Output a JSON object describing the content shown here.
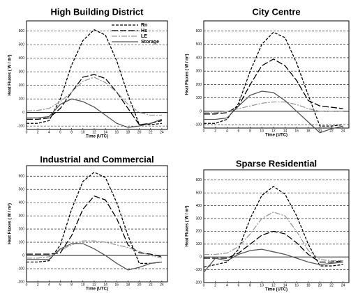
{
  "chart_data": [
    {
      "type": "line",
      "title": "High Building District",
      "xlabel": "Time (UTC)",
      "ylabel": "Heat Fluxes ( W / m²)",
      "x": [
        0,
        2,
        4,
        6,
        8,
        10,
        12,
        14,
        16,
        18,
        20,
        22,
        24
      ],
      "series": [
        {
          "name": "Rn",
          "color": "#000000",
          "dash": "4,2",
          "values": [
            -80,
            -80,
            -60,
            100,
            350,
            530,
            610,
            570,
            380,
            130,
            -90,
            -90,
            -80
          ]
        },
        {
          "name": "Hs",
          "color": "#000000",
          "dash": "9,3",
          "values": [
            -50,
            -50,
            -40,
            30,
            150,
            260,
            280,
            250,
            150,
            30,
            -90,
            -80,
            -60
          ]
        },
        {
          "name": "LE",
          "color": "#999999",
          "dash": "8,2,2,2",
          "values": [
            10,
            15,
            30,
            80,
            150,
            230,
            260,
            220,
            150,
            60,
            0,
            -20,
            -20
          ]
        },
        {
          "name": "Storage",
          "color": "#555555",
          "dash": "",
          "values": [
            -40,
            -40,
            -30,
            60,
            100,
            80,
            40,
            -20,
            -80,
            -110,
            -100,
            -80,
            -50
          ]
        }
      ],
      "xlim": [
        0,
        25
      ],
      "ylim": [
        -125,
        675
      ],
      "xticks": [
        0,
        2,
        4,
        6,
        8,
        10,
        12,
        14,
        16,
        18,
        20,
        22,
        24
      ],
      "yticks": [
        -100,
        0,
        100,
        200,
        300,
        400,
        500,
        600
      ],
      "grid": true,
      "legend": "upper right"
    },
    {
      "type": "line",
      "title": "City Centre",
      "xlabel": "Time (UTC)",
      "ylabel": "Heat Fluxes ( W / m²)",
      "x": [
        0,
        2,
        4,
        6,
        8,
        10,
        12,
        14,
        16,
        18,
        20,
        22,
        24
      ],
      "series": [
        {
          "color": "#000000",
          "dash": "4,2",
          "values": [
            -90,
            -90,
            -60,
            60,
            300,
            500,
            590,
            550,
            360,
            120,
            -110,
            -110,
            -100
          ]
        },
        {
          "color": "#000000",
          "dash": "9,3",
          "values": [
            -20,
            -20,
            -10,
            40,
            200,
            340,
            390,
            340,
            230,
            80,
            40,
            30,
            20
          ]
        },
        {
          "color": "#999999",
          "dash": "8,2,2,2",
          "values": [
            -10,
            -10,
            0,
            20,
            40,
            60,
            70,
            70,
            50,
            20,
            0,
            0,
            0
          ]
        },
        {
          "color": "#555555",
          "dash": "",
          "values": [
            -60,
            -60,
            -50,
            40,
            120,
            150,
            140,
            80,
            0,
            -80,
            -160,
            -130,
            -110
          ]
        }
      ],
      "xlim": [
        0,
        25
      ],
      "ylim": [
        -125,
        675
      ],
      "xticks": [
        0,
        2,
        4,
        6,
        8,
        10,
        12,
        14,
        16,
        18,
        20,
        22,
        24
      ],
      "yticks": [
        -100,
        0,
        100,
        200,
        300,
        400,
        500,
        600
      ],
      "grid": true
    },
    {
      "type": "line",
      "title": "Industrial and Commercial",
      "xlabel": "Time (UTC)",
      "ylabel": "Heat Fluxes ( W / m²)",
      "x": [
        0,
        2,
        4,
        6,
        8,
        10,
        12,
        14,
        16,
        18,
        20,
        22,
        24
      ],
      "series": [
        {
          "color": "#000000",
          "dash": "4,2",
          "values": [
            -50,
            -50,
            -40,
            80,
            350,
            560,
            630,
            590,
            400,
            150,
            -60,
            -60,
            -50
          ]
        },
        {
          "color": "#000000",
          "dash": "9,3",
          "values": [
            10,
            10,
            10,
            20,
            150,
            350,
            450,
            420,
            280,
            80,
            20,
            10,
            -10
          ]
        },
        {
          "color": "#999999",
          "dash": "8,2,2,2",
          "values": [
            -20,
            -20,
            -10,
            40,
            80,
            110,
            110,
            100,
            80,
            60,
            30,
            0,
            -20
          ]
        },
        {
          "color": "#555555",
          "dash": "",
          "values": [
            -30,
            -30,
            -30,
            50,
            90,
            90,
            50,
            0,
            -60,
            -110,
            -90,
            -60,
            -50
          ]
        }
      ],
      "xlim": [
        0,
        25
      ],
      "ylim": [
        -200,
        680
      ],
      "xticks": [
        0,
        2,
        4,
        6,
        8,
        10,
        12,
        14,
        16,
        18,
        20,
        22,
        24
      ],
      "yticks": [
        -200,
        -100,
        0,
        100,
        200,
        300,
        400,
        500,
        600
      ],
      "grid": true
    },
    {
      "type": "line",
      "title": "Sparse Residential",
      "xlabel": "Time (UTC)",
      "ylabel": "Heat Fluxes ( W / m²)",
      "x": [
        0,
        2,
        4,
        6,
        8,
        10,
        12,
        14,
        16,
        18,
        20,
        22,
        24
      ],
      "series": [
        {
          "color": "#000000",
          "dash": "4,2",
          "values": [
            -80,
            -60,
            -40,
            60,
            300,
            480,
            550,
            490,
            320,
            100,
            -70,
            -70,
            -60
          ]
        },
        {
          "color": "#000000",
          "dash": "9,3",
          "values": [
            -10,
            -10,
            -10,
            30,
            100,
            170,
            200,
            180,
            110,
            20,
            -40,
            -40,
            -30
          ]
        },
        {
          "color": "#999999",
          "dash": "8,2,2,2",
          "values": [
            20,
            20,
            30,
            80,
            180,
            300,
            350,
            320,
            200,
            50,
            -20,
            -30,
            -30
          ]
        },
        {
          "color": "#555555",
          "dash": "",
          "values": [
            -120,
            -10,
            -30,
            20,
            50,
            60,
            40,
            20,
            -10,
            -40,
            -60,
            -50,
            -40
          ]
        }
      ],
      "xlim": [
        0,
        25
      ],
      "ylim": [
        -200,
        680
      ],
      "xticks": [
        0,
        2,
        4,
        6,
        8,
        10,
        12,
        14,
        16,
        18,
        20,
        22,
        24
      ],
      "yticks": [
        -200,
        -100,
        0,
        100,
        200,
        300,
        400,
        500,
        600
      ],
      "grid": true
    }
  ]
}
